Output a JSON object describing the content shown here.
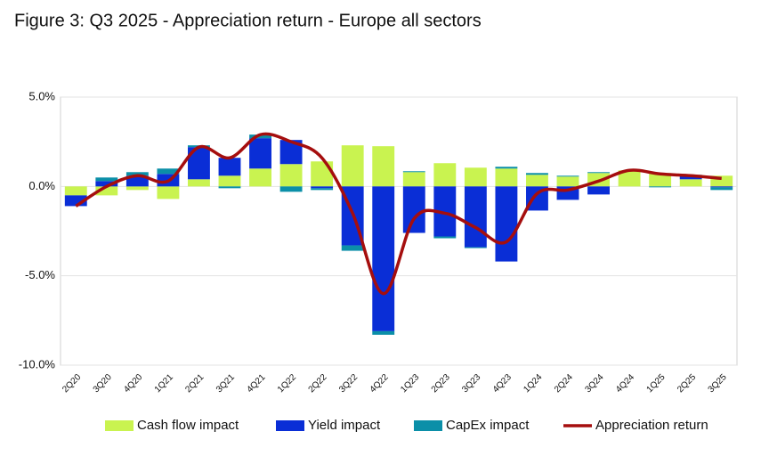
{
  "chart_data": {
    "type": "bar",
    "stacked": true,
    "title": "Figure 3: Q3 2025 - Appreciation return - Europe all sectors",
    "categories": [
      "2Q20",
      "3Q20",
      "4Q20",
      "1Q21",
      "2Q21",
      "3Q21",
      "4Q21",
      "1Q22",
      "2Q22",
      "3Q22",
      "4Q22",
      "1Q23",
      "2Q23",
      "3Q23",
      "4Q23",
      "1Q24",
      "2Q24",
      "3Q24",
      "4Q24",
      "1Q25",
      "2Q25",
      "3Q25"
    ],
    "series": [
      {
        "name": "Cash flow impact",
        "type": "bar",
        "color": "#c9f350",
        "values": [
          -0.5,
          -0.5,
          -0.2,
          -0.7,
          0.4,
          0.6,
          1.0,
          1.25,
          1.4,
          2.3,
          2.25,
          0.8,
          1.3,
          1.05,
          1.0,
          0.65,
          0.55,
          0.75,
          0.9,
          0.75,
          0.4,
          0.6
        ]
      },
      {
        "name": "Yield impact",
        "type": "bar",
        "color": "#0a2ed6",
        "values": [
          -0.6,
          0.3,
          0.6,
          0.7,
          1.8,
          1.0,
          1.7,
          1.35,
          -0.1,
          -3.3,
          -8.1,
          -2.6,
          -2.8,
          -3.4,
          -4.2,
          -1.35,
          -0.75,
          -0.45,
          0,
          0,
          0.2,
          -0.05
        ]
      },
      {
        "name": "CapEx impact",
        "type": "bar",
        "color": "#0b8fa8",
        "values": [
          0,
          0.2,
          0.2,
          0.3,
          0.1,
          -0.1,
          0.2,
          -0.3,
          -0.1,
          -0.3,
          -0.2,
          0.05,
          -0.1,
          -0.05,
          0.1,
          0.1,
          0.05,
          0.05,
          0,
          -0.05,
          0.05,
          -0.15
        ]
      },
      {
        "name": "Appreciation return",
        "type": "line",
        "color": "#a50e0e",
        "values": [
          -1.1,
          0.0,
          0.6,
          0.3,
          2.2,
          1.6,
          2.9,
          2.5,
          1.6,
          -1.5,
          -6.0,
          -1.8,
          -1.5,
          -2.3,
          -3.1,
          -0.4,
          -0.2,
          0.3,
          0.9,
          0.7,
          0.6,
          0.45
        ]
      }
    ],
    "ylim": [
      -10,
      5
    ],
    "yticks": [
      {
        "value": 5,
        "label": "5.0%"
      },
      {
        "value": 0,
        "label": "0.0%"
      },
      {
        "value": -5,
        "label": "-5.0%"
      },
      {
        "value": -10,
        "label": "-10.0%"
      }
    ],
    "grid": true,
    "legend": "bottom"
  }
}
